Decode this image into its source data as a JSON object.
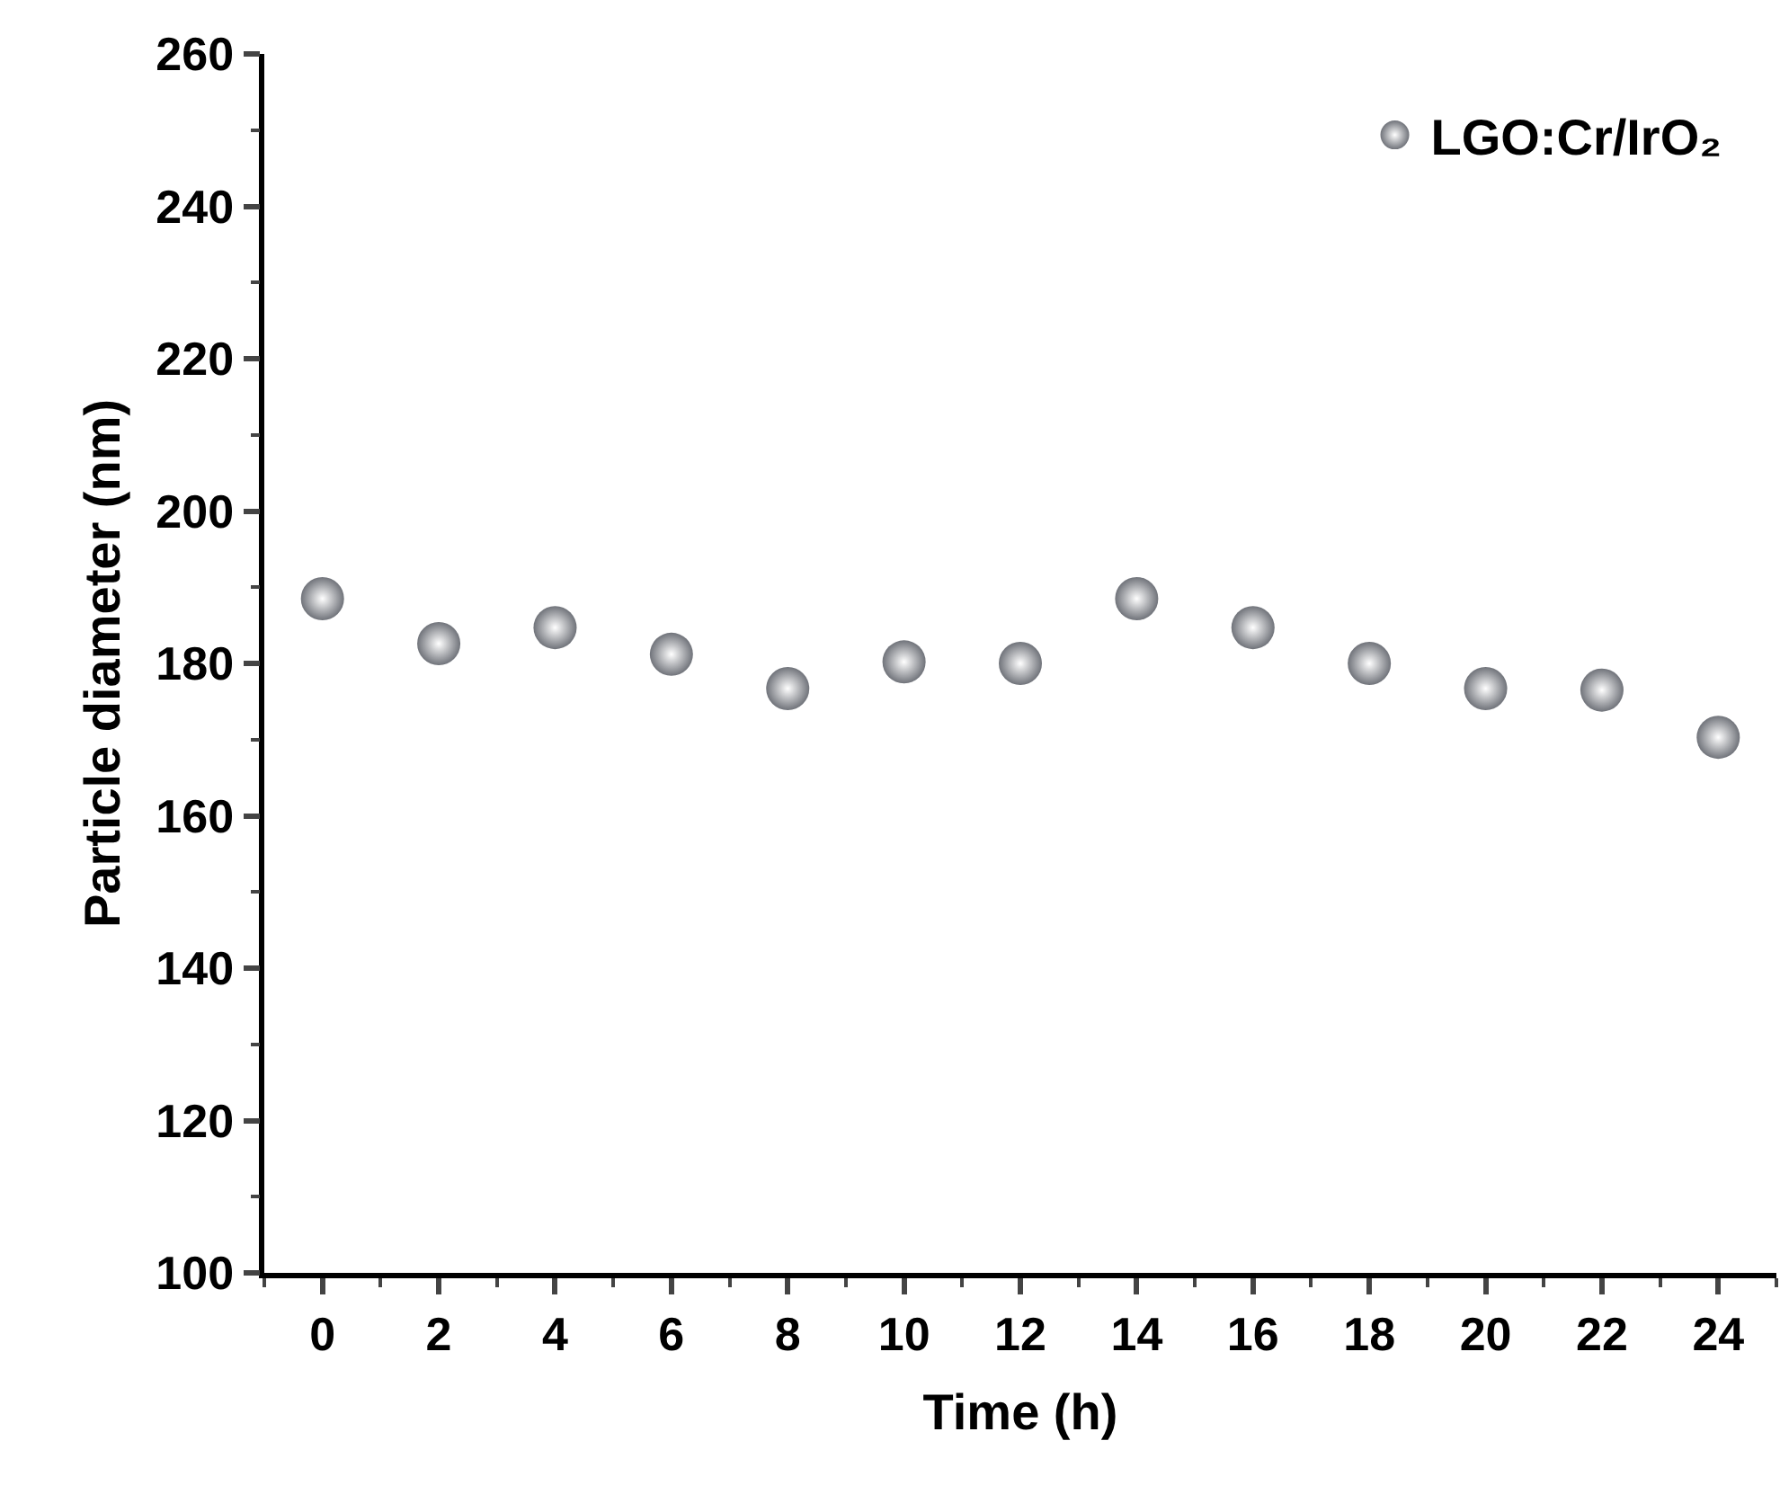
{
  "chart_data": {
    "type": "scatter",
    "xlabel": "Time (h)",
    "ylabel": "Particle diameter (nm)",
    "x": [
      0,
      2,
      4,
      6,
      8,
      10,
      12,
      14,
      16,
      18,
      20,
      22,
      24
    ],
    "series": [
      {
        "name": "LGO:Cr/IrO₂",
        "color": "#70737a",
        "values": [
          188.5,
          182.6,
          184.7,
          181.2,
          176.7,
          180.2,
          180,
          188.5,
          184.7,
          180,
          176.7,
          176.5,
          170.3
        ]
      }
    ],
    "xlim": [
      -1,
      25
    ],
    "xticks": [
      0,
      2,
      4,
      6,
      8,
      10,
      12,
      14,
      16,
      18,
      20,
      22,
      24
    ],
    "ylim": [
      100,
      260
    ],
    "yticks": [
      100,
      120,
      140,
      160,
      180,
      200,
      220,
      240,
      260
    ],
    "grid": false,
    "legend": "top right",
    "marker": "circle"
  }
}
